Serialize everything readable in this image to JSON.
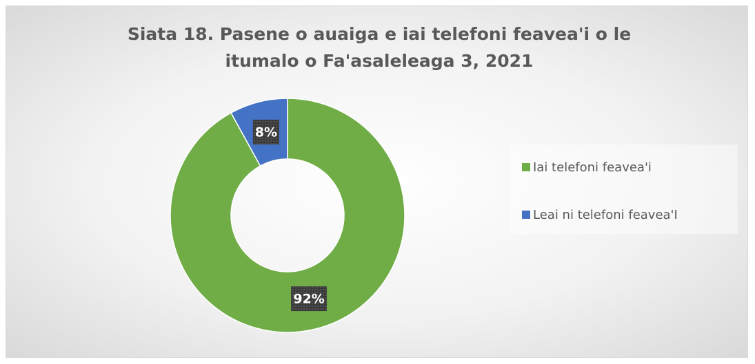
{
  "chart_data": {
    "type": "donut",
    "title": "Siata 18. Pasene o auaiga e iai telefoni feavea'i o le itumalo o Fa'asaleleaga 3, 2021",
    "categories": [
      "Iai telefoni feavea'i",
      "Leai ni telefoni feavea'I"
    ],
    "values": [
      92,
      8
    ],
    "value_labels": [
      "92%",
      "8%"
    ],
    "colors": [
      "#70ad47",
      "#4472c4"
    ],
    "legend": "right"
  }
}
